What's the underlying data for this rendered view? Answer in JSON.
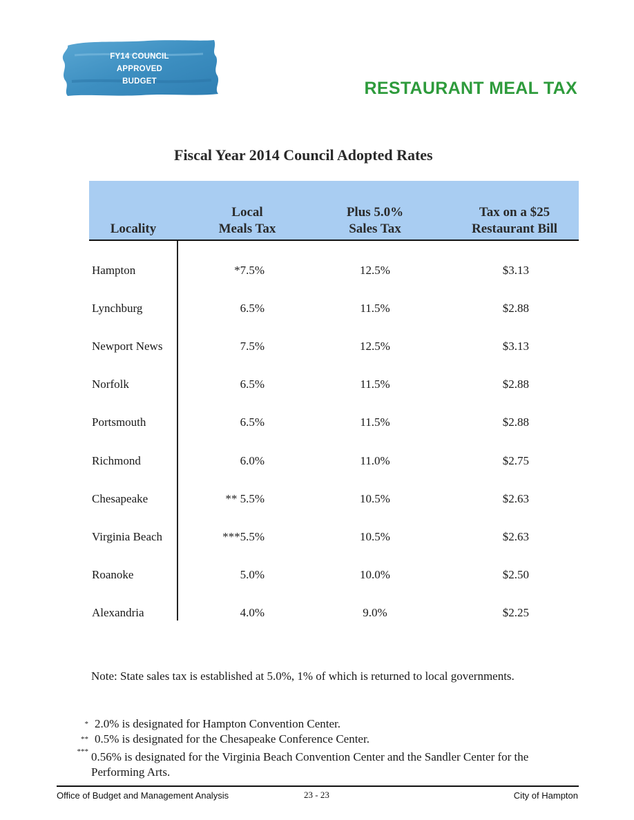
{
  "badge": {
    "lines": [
      "FY14 COUNCIL",
      "APPROVED",
      "BUDGET"
    ],
    "color": "#3d8fc1"
  },
  "section_title": "RESTAURANT MEAL TAX",
  "table": {
    "title": "Fiscal Year 2014 Council Adopted Rates",
    "header_color": "#a9cdf2",
    "columns": {
      "locality": [
        "Locality"
      ],
      "local": [
        "Local",
        "Meals Tax"
      ],
      "plus": [
        "Plus 5.0%",
        "Sales Tax"
      ],
      "bill": [
        "Tax on a $25",
        "Restaurant Bill"
      ]
    },
    "rows": [
      {
        "locality": "Hampton",
        "local": "*7.5%",
        "plus": "12.5%",
        "bill": "$3.13"
      },
      {
        "locality": "Lynchburg",
        "local": "6.5%",
        "plus": "11.5%",
        "bill": "$2.88"
      },
      {
        "locality": "Newport News",
        "local": "7.5%",
        "plus": "12.5%",
        "bill": "$3.13"
      },
      {
        "locality": "Norfolk",
        "local": "6.5%",
        "plus": "11.5%",
        "bill": "$2.88"
      },
      {
        "locality": "Portsmouth",
        "local": "6.5%",
        "plus": "11.5%",
        "bill": "$2.88"
      },
      {
        "locality": "Richmond",
        "local": "6.0%",
        "plus": "11.0%",
        "bill": "$2.75"
      },
      {
        "locality": "Chesapeake",
        "local": "** 5.5%",
        "plus": "10.5%",
        "bill": "$2.63"
      },
      {
        "locality": "Virginia Beach",
        "local": "***5.5%",
        "plus": "10.5%",
        "bill": "$2.63"
      },
      {
        "locality": "Roanoke",
        "local": "5.0%",
        "plus": "10.0%",
        "bill": "$2.50"
      },
      {
        "locality": "Alexandria",
        "local": "4.0%",
        "plus": "9.0%",
        "bill": "$2.25"
      }
    ]
  },
  "note": "Note:  State sales tax is established at 5.0%, 1% of which is returned to local governments.",
  "footnotes": [
    {
      "mark": "*",
      "text": "2.0% is designated for Hampton Convention Center."
    },
    {
      "mark": "**",
      "text": "0.5% is designated for the Chesapeake Conference Center."
    },
    {
      "mark": "***",
      "text": "0.56% is designated for the Virginia Beach Convention Center and the Sandler Center for the Performing Arts."
    }
  ],
  "footer": {
    "left": "Office of Budget and Management Analysis",
    "center": "23 - 23",
    "right": "City of Hampton"
  }
}
